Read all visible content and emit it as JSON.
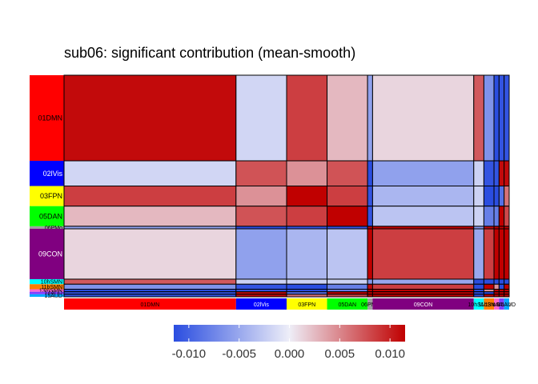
{
  "chart_data": {
    "type": "heatmap",
    "title": "sub06: significant contribution (mean-smooth)",
    "networks": [
      {
        "label": "01DMN",
        "size": 34,
        "color": "#ff0000",
        "text_color": "#000000"
      },
      {
        "label": "02lVis",
        "size": 10,
        "color": "#0000ff",
        "text_color": "#ffffff"
      },
      {
        "label": "03FPN",
        "size": 8,
        "color": "#ffff00",
        "text_color": "#000000"
      },
      {
        "label": "05DAN",
        "size": 8,
        "color": "#00ff00",
        "text_color": "#000000"
      },
      {
        "label": "06PMo",
        "size": 1,
        "color": "#a0a0a0",
        "text_color": "#000000"
      },
      {
        "label": "09CON",
        "size": 20,
        "color": "#800080",
        "text_color": "#ffffff"
      },
      {
        "label": "10hSMN",
        "size": 2,
        "color": "#00ffff",
        "text_color": "#000000"
      },
      {
        "label": "11bSMN",
        "size": 2,
        "color": "#ff8000",
        "text_color": "#000000"
      },
      {
        "label": "13mSMN",
        "size": 1,
        "color": "#ff66cc",
        "text_color": "#000000"
      },
      {
        "label": "14AUD",
        "size": 1,
        "color": "#8040ff",
        "text_color": "#000000"
      },
      {
        "label": "15AUD",
        "size": 1,
        "color": "#00aaff",
        "text_color": "#000000"
      }
    ],
    "values": [
      [
        0.011,
        -0.0017,
        0.0085,
        0.0026,
        -0.0055,
        0.0012,
        0.0072,
        -0.0065,
        -0.012,
        -0.011,
        -0.011
      ],
      [
        -0.0017,
        0.0075,
        0.0045,
        0.0075,
        -0.012,
        -0.0055,
        -0.002,
        -0.011,
        -0.011,
        0.011,
        0.011
      ],
      [
        0.0085,
        0.0045,
        0.012,
        0.0085,
        -0.011,
        -0.004,
        -0.002,
        -0.012,
        -0.012,
        -0.009,
        0.006
      ],
      [
        0.0026,
        0.0075,
        0.0085,
        0.012,
        -0.011,
        -0.003,
        -0.002,
        -0.008,
        -0.008,
        0.012,
        0.008
      ],
      [
        -0.0055,
        -0.012,
        -0.011,
        -0.011,
        0.012,
        0.012,
        -0.006,
        0.011,
        0.012,
        0.012,
        0.012
      ],
      [
        0.0012,
        -0.0055,
        -0.004,
        -0.003,
        0.012,
        0.0085,
        -0.005,
        0.0085,
        0.012,
        0.012,
        0.012
      ],
      [
        0.0072,
        -0.002,
        -0.002,
        -0.002,
        -0.006,
        -0.005,
        -0.012,
        -0.012,
        -0.012,
        -0.012,
        -0.012
      ],
      [
        -0.0065,
        -0.011,
        -0.012,
        -0.008,
        0.011,
        0.0085,
        -0.012,
        0.012,
        0.0045,
        -0.012,
        0.012
      ],
      [
        -0.012,
        -0.011,
        -0.012,
        -0.008,
        0.012,
        0.012,
        -0.012,
        0.0045,
        0.012,
        0.012,
        0.012
      ],
      [
        -0.011,
        0.011,
        -0.009,
        0.012,
        0.012,
        0.012,
        -0.012,
        -0.012,
        0.012,
        0.012,
        0.012
      ],
      [
        -0.011,
        0.011,
        0.006,
        0.008,
        0.012,
        0.012,
        -0.012,
        0.012,
        0.012,
        0.012,
        0.012
      ]
    ],
    "colorbar": {
      "min": -0.0115,
      "max": 0.0115,
      "ticks": [
        -0.01,
        -0.005,
        0.0,
        0.005,
        0.01
      ],
      "tick_labels": [
        "-0.010",
        "-0.005",
        "0.000",
        "0.005",
        "0.010"
      ],
      "low_color": "#2a4de0",
      "mid_color": "#eeeef8",
      "high_color": "#c00000"
    }
  }
}
